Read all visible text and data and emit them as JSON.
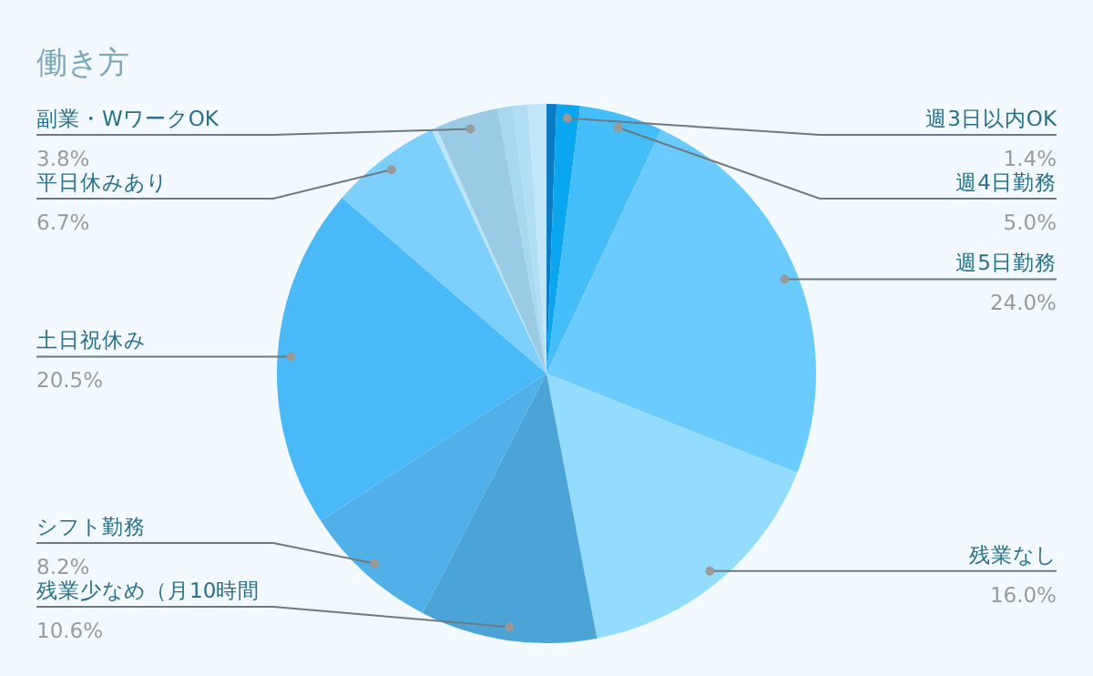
{
  "chart_data": {
    "type": "pie",
    "title": "働き方",
    "categories": [
      null,
      "週3日以内OK",
      "週4日勤務",
      "週5日勤務",
      "残業なし",
      "残業少なめ（月10時間",
      "シフト勤務",
      "土日祝休み",
      "平日休みあり",
      null,
      "副業・WワークOK",
      null,
      null,
      null
    ],
    "values": [
      0.6,
      1.4,
      5.0,
      24.0,
      16.0,
      10.6,
      8.2,
      20.5,
      6.7,
      0.3,
      3.8,
      0.9,
      0.9,
      1.1
    ],
    "value_labels": [
      null,
      "1.4%",
      "5.0%",
      "24.0%",
      "16.0%",
      "10.6%",
      "8.2%",
      "20.5%",
      "6.7%",
      null,
      "3.8%",
      null,
      null,
      null
    ],
    "colors": [
      "#0a7bc4",
      "#0aa6f0",
      "#45bdf8",
      "#6ccbfd",
      "#93dcfd",
      "#4ba3d6",
      "#52b0e8",
      "#4ab9f8",
      "#7dd0fc",
      "#b9e5fa",
      "#9bcae4",
      "#a8d8f0",
      "#b2def5",
      "#c0e6f8"
    ]
  }
}
